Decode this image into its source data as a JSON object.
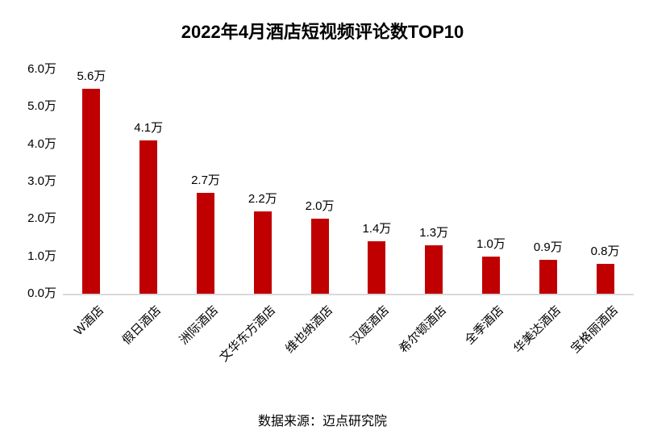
{
  "footer": {
    "source_label": "数据来源：迈点研究院"
  },
  "colors": {
    "bar": "#c00000",
    "axis_line": "#d9d9d9",
    "text": "#000000"
  },
  "chart_data": {
    "type": "bar",
    "title": "2022年4月酒店短视频评论数TOP10",
    "categories": [
      "W酒店",
      "假日酒店",
      "洲际酒店",
      "文华东方酒店",
      "维也纳酒店",
      "汉庭酒店",
      "希尔顿酒店",
      "全季酒店",
      "华美达酒店",
      "宝格丽酒店"
    ],
    "values": [
      5.6,
      4.1,
      2.7,
      2.2,
      2.0,
      1.4,
      1.3,
      1.0,
      0.9,
      0.8
    ],
    "value_labels": [
      "5.6万",
      "4.1万",
      "2.7万",
      "2.2万",
      "2.0万",
      "1.4万",
      "1.3万",
      "1.0万",
      "0.9万",
      "0.8万"
    ],
    "unit": "万",
    "xlabel": "",
    "ylabel": "",
    "ylim": [
      0,
      6
    ],
    "yticks": [
      "0.0万",
      "1.0万",
      "2.0万",
      "3.0万",
      "4.0万",
      "5.0万",
      "6.0万"
    ],
    "grid": false,
    "legend": "none",
    "x_label_rotation_deg": -45,
    "bar_color": "#c00000"
  }
}
